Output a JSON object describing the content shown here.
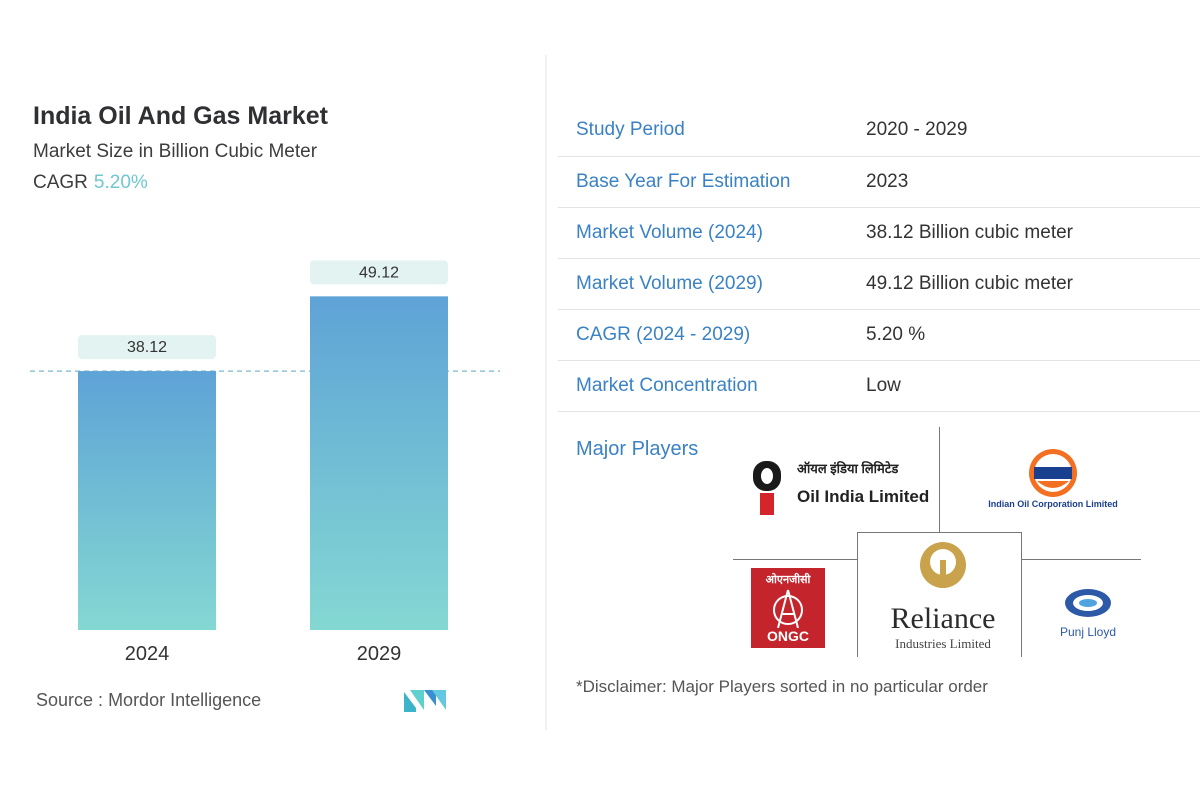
{
  "chart_data": {
    "type": "bar",
    "title": "India Oil And Gas Market",
    "subtitle": "Market Size in Billion Cubic Meter",
    "cagr_label": "CAGR",
    "cagr_value": "5.20%",
    "categories": [
      "2024",
      "2029"
    ],
    "values": [
      38.12,
      49.12
    ],
    "value_labels": [
      "38.12",
      "49.12"
    ],
    "ylim": [
      0,
      53
    ],
    "reference_line_value": 38.12,
    "grid": false,
    "colors": {
      "bar_top": "#5ea3d6",
      "bar_bottom": "#84d8d3",
      "label_bg": "#e3f3f1",
      "ref_line": "#8fc4d6"
    }
  },
  "source": {
    "label": "Source :",
    "name": "Mordor Intelligence",
    "logo_icon": "mordor-intelligence-logo-icon"
  },
  "stats": [
    {
      "label": "Study Period",
      "value": "2020 - 2029"
    },
    {
      "label": "Base Year For Estimation",
      "value": "2023"
    },
    {
      "label": "Market Volume (2024)",
      "value": "38.12 Billion cubic meter"
    },
    {
      "label": "Market Volume (2029)",
      "value": "49.12 Billion cubic meter"
    },
    {
      "label": "CAGR (2024 - 2029)",
      "value": "5.20 %"
    },
    {
      "label": "Market Concentration",
      "value": "Low"
    }
  ],
  "players": {
    "label": "Major Players",
    "oil_india": {
      "hindi": "ऑयल इंडिया लिमिटेड",
      "name": "Oil India Limited",
      "icon": "oil-india-logo-icon"
    },
    "indian_oil": {
      "name": "Indian Oil  Corporation Limited",
      "hindi": "इंडियनऑयल",
      "icon": "indian-oil-logo-icon"
    },
    "ongc": {
      "hindi": "ओएनजीसी",
      "name": "ONGC",
      "icon": "ongc-derrick-icon"
    },
    "reliance": {
      "name": "Reliance",
      "sub": "Industries Limited",
      "icon": "reliance-logo-icon"
    },
    "punj_lloyd": {
      "name": "Punj Lloyd",
      "icon": "punj-lloyd-logo-icon"
    }
  },
  "disclaimer": "*Disclaimer: Major Players sorted in no particular order"
}
